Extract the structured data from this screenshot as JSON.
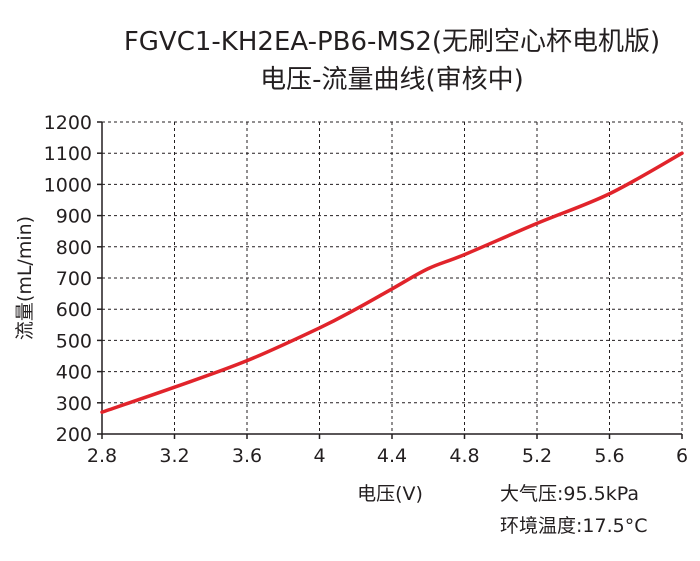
{
  "chart_data": {
    "type": "line",
    "title": "FGVC1-KH2EA-PB6-MS2(无刷空心杯电机版)",
    "subtitle": "电压-流量曲线(审核中)",
    "xlabel": "电压(V)",
    "ylabel": "流量(mL/min)",
    "xlim": [
      2.8,
      6
    ],
    "ylim": [
      200,
      1200
    ],
    "x_ticks": [
      "2.8",
      "3.2",
      "3.6",
      "4",
      "4.4",
      "4.8",
      "5.2",
      "5.6",
      "6"
    ],
    "x_tick_values": [
      2.8,
      3.2,
      3.6,
      4.0,
      4.4,
      4.8,
      5.2,
      5.6,
      6.0
    ],
    "y_ticks": [
      "200",
      "300",
      "400",
      "500",
      "600",
      "700",
      "800",
      "900",
      "1000",
      "1100",
      "1200"
    ],
    "y_tick_values": [
      200,
      300,
      400,
      500,
      600,
      700,
      800,
      900,
      1000,
      1100,
      1200
    ],
    "grid": true,
    "series": [
      {
        "color": "#e1242b",
        "x": [
          2.8,
          3.2,
          3.6,
          4.0,
          4.2,
          4.4,
          4.6,
          4.8,
          5.2,
          5.6,
          6.0
        ],
        "y": [
          270,
          350,
          435,
          540,
          600,
          665,
          730,
          775,
          875,
          970,
          1100
        ]
      }
    ],
    "annotations": [
      "大气压:95.5kPa",
      "环境温度:17.5°C"
    ]
  }
}
